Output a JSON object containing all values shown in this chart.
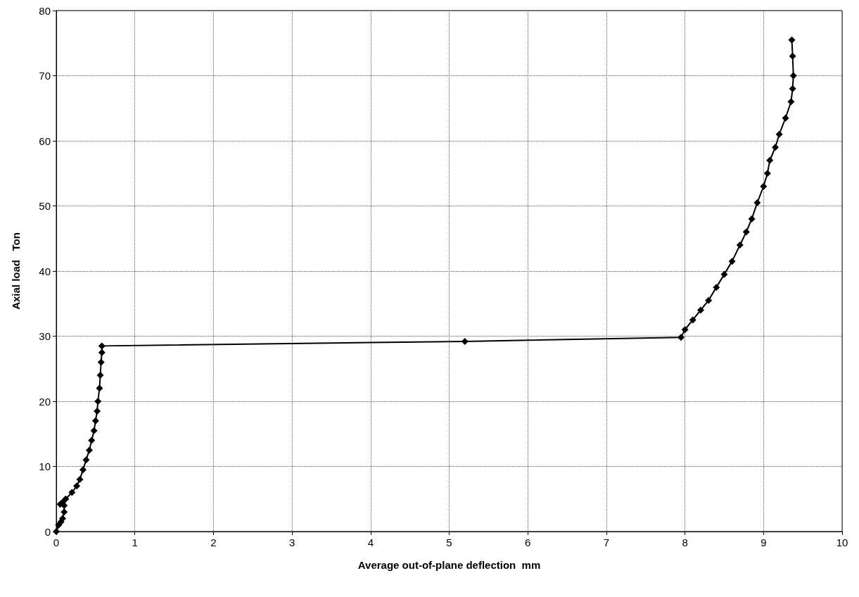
{
  "chart_data": {
    "type": "line",
    "xlabel": "Average out-of-plane deflection  mm",
    "ylabel": "Axial load   Ton",
    "series": [
      {
        "color": "#000000",
        "x": [
          0,
          0.03,
          0.06,
          0.08,
          0.1,
          0.1,
          0.08,
          0.05,
          0.12,
          0.2,
          0.26,
          0.3,
          0.34,
          0.38,
          0.42,
          0.45,
          0.48,
          0.5,
          0.52,
          0.53,
          0.55,
          0.56,
          0.57,
          0.58,
          0.58,
          5.2,
          7.95,
          8.0,
          8.1,
          8.2,
          8.3,
          8.4,
          8.5,
          8.6,
          8.7,
          8.78,
          8.85,
          8.92,
          9.0,
          9.05,
          9.08,
          9.15,
          9.2,
          9.28,
          9.35,
          9.37,
          9.38,
          9.37,
          9.36
        ],
        "values": [
          0,
          1,
          1.5,
          2,
          3,
          4,
          4.5,
          4.2,
          5,
          6,
          7,
          8,
          9.5,
          11,
          12.5,
          14,
          15.5,
          17,
          18.5,
          20,
          22,
          24,
          26,
          27.5,
          28.5,
          29.2,
          29.8,
          31,
          32.5,
          34,
          35.5,
          37.5,
          39.5,
          41.5,
          44,
          46,
          48,
          50.5,
          53,
          55,
          57,
          59,
          61,
          63.5,
          66,
          68,
          70,
          73,
          75.5
        ]
      }
    ],
    "xlim": [
      0,
      10
    ],
    "xticks": [
      0,
      1,
      2,
      3,
      4,
      5,
      6,
      7,
      8,
      9,
      10
    ],
    "ylim": [
      0,
      80
    ],
    "yticks": [
      0,
      10,
      20,
      30,
      40,
      50,
      60,
      70,
      80
    ],
    "grid": true,
    "marker": "diamond",
    "line_style": "solid"
  }
}
